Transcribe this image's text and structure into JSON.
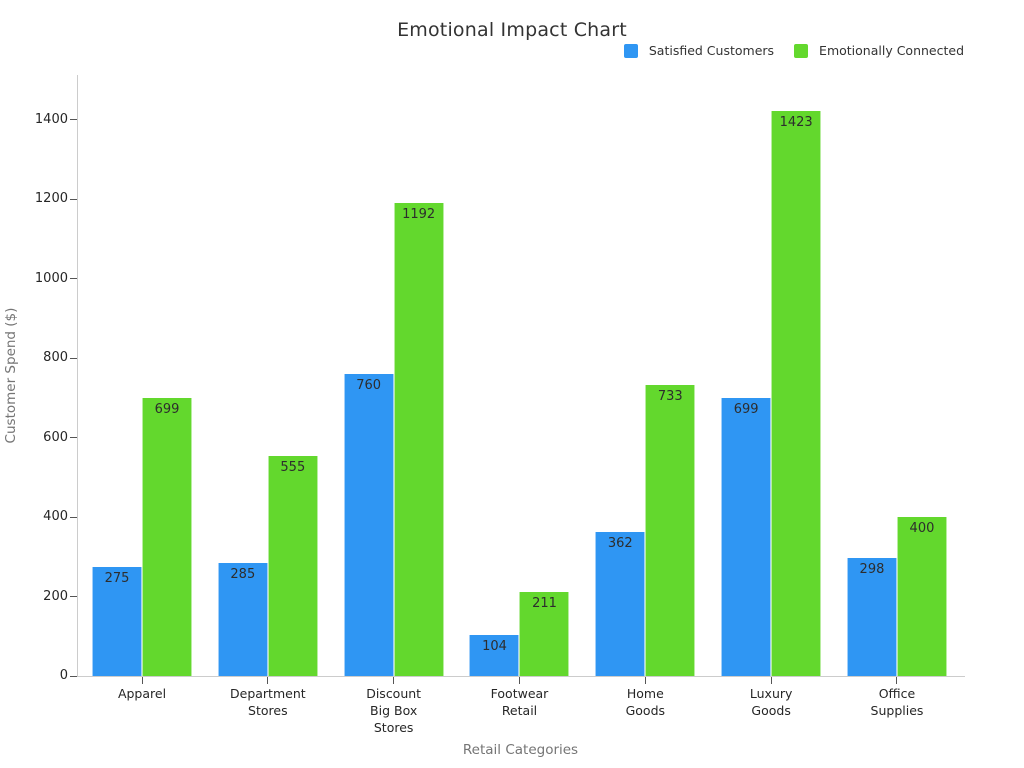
{
  "chart_data": {
    "type": "bar",
    "title": "Emotional Impact Chart",
    "xlabel": "Retail Categories",
    "ylabel": "Customer Spend ($)",
    "categories": [
      "Apparel",
      "Department Stores",
      "Discount Big Box Stores",
      "Footwear Retail",
      "Home Goods",
      "Luxury Goods",
      "Office Supplies"
    ],
    "category_lines": [
      [
        "Apparel"
      ],
      [
        "Department",
        "Stores"
      ],
      [
        "Discount",
        "Big Box",
        "Stores"
      ],
      [
        "Footwear",
        "Retail"
      ],
      [
        "Home",
        "Goods"
      ],
      [
        "Luxury",
        "Goods"
      ],
      [
        "Office",
        "Supplies"
      ]
    ],
    "series": [
      {
        "name": "Satisfied Customers",
        "color": "#2f96f3",
        "values": [
          275,
          285,
          760,
          104,
          362,
          699,
          298
        ]
      },
      {
        "name": "Emotionally Connected",
        "color": "#63d82d",
        "values": [
          699,
          555,
          1192,
          211,
          733,
          1423,
          400
        ]
      }
    ],
    "yticks": [
      0,
      200,
      400,
      600,
      800,
      1000,
      1200,
      1400
    ],
    "ylim": [
      0,
      1513
    ],
    "grid": false,
    "legend_position": "top-right",
    "value_labels": "inside-top"
  },
  "colors": {
    "background": "#ffffff",
    "title_text": "#333333",
    "axis_line": "#cccccc",
    "tick_mark": "#555555",
    "tick_label": "#262626",
    "axis_title": "#757575",
    "value_label": "#2d2d2d"
  }
}
